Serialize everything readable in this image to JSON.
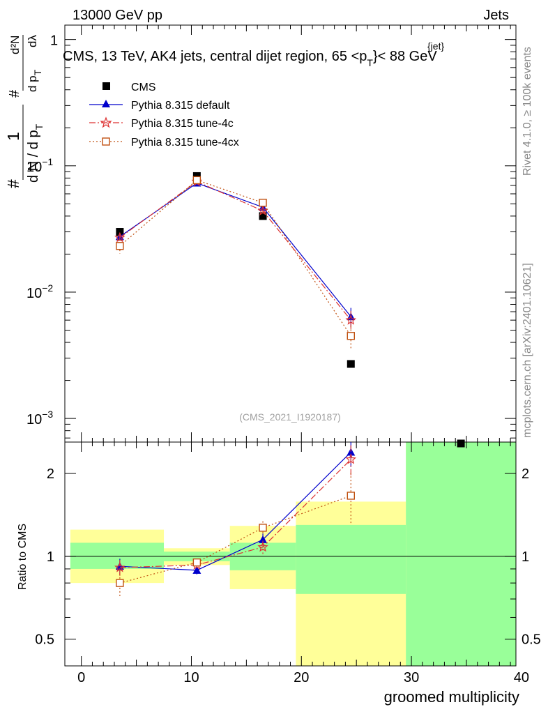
{
  "header": {
    "left": "13000 GeV pp",
    "right": "Jets"
  },
  "side_labels": {
    "rivet": "Rivet 4.1.0, ≥ 100k events",
    "mcplots": "mcplots.cern.ch [arXiv:2401.10621]"
  },
  "chart_data": {
    "type": "scatter",
    "title": "CMS, 13 TeV, AK4 jets, central dijet region, 65 <p",
    "title_sub": "T",
    "title_sup": "{jet}",
    "title_end": "}< 88 GeV",
    "analysis_tag": "(CMS_2021_I1920187)",
    "xlabel": "groomed multiplicity",
    "ylabel_top": {
      "numerator": "1",
      "den_a": "d N / d p",
      "den_a_sub": "T",
      "prefix_hash": "#",
      "ratio_num": "d²N",
      "ratio_den": "d p",
      "ratio_den_sub": "T",
      "ratio_end": "dλ",
      "ratio_hash": "#"
    },
    "ylabel_bottom": "Ratio to CMS",
    "xlim": [
      -1.5,
      39.5
    ],
    "x_ticks": [
      "0",
      "10",
      "20",
      "30",
      "40"
    ],
    "ylim_top": [
      0.00065,
      1.3
    ],
    "ylim_bottom": [
      0.4,
      2.6
    ],
    "y_ticks_top": [
      {
        "value": 1,
        "label": "1",
        "sup": ""
      },
      {
        "value": 0.1,
        "label": "10",
        "sup": "−1"
      },
      {
        "value": 0.01,
        "label": "10",
        "sup": "−2"
      },
      {
        "value": 0.001,
        "label": "10",
        "sup": "−3"
      }
    ],
    "y_ticks_bottom": [
      {
        "value": 0.5,
        "label": "0.5"
      },
      {
        "value": 1,
        "label": "1"
      },
      {
        "value": 2,
        "label": "2"
      }
    ],
    "bins": [
      {
        "lo": -1,
        "hi": 7.5,
        "center": 3.5
      },
      {
        "lo": 7.5,
        "hi": 13.5,
        "center": 10.5
      },
      {
        "lo": 13.5,
        "hi": 19.5,
        "center": 16.5
      },
      {
        "lo": 19.5,
        "hi": 29.5,
        "center": 24.5
      },
      {
        "lo": 29.5,
        "hi": 39.5,
        "center": 34.5
      }
    ],
    "data": {
      "name": "CMS",
      "x": [
        3.5,
        10.5,
        16.5,
        24.5,
        34.5
      ],
      "y": [
        0.03,
        0.083,
        0.04,
        0.0027,
        0.0006
      ],
      "ratio_band_inner": [
        [
          0.9,
          1.12
        ],
        [
          0.96,
          1.04
        ],
        [
          0.89,
          1.12
        ],
        [
          0.73,
          1.3
        ],
        [
          0.0,
          2.6
        ]
      ],
      "ratio_band_outer": [
        [
          0.8,
          1.25
        ],
        [
          0.93,
          1.07
        ],
        [
          0.76,
          1.29
        ],
        [
          0.0,
          1.58
        ],
        [
          0.0,
          2.6
        ]
      ]
    },
    "series": [
      {
        "name": "Pythia 8.315 default",
        "color": "#0000cc",
        "dash": "",
        "marker": "triangle",
        "x": [
          3.5,
          10.5,
          16.5,
          24.5
        ],
        "y": [
          0.0275,
          0.073,
          0.047,
          0.0064
        ],
        "yerr": [
          0.0015,
          0.0015,
          0.002,
          0.0011
        ],
        "ratio": [
          0.92,
          0.89,
          1.15,
          2.39
        ],
        "ratio_err": [
          0.06,
          0.03,
          0.06,
          0.28
        ]
      },
      {
        "name": "Pythia 8.315 tune-4c",
        "color": "#dd3333",
        "dash": "9,3,2,3",
        "marker": "star",
        "x": [
          3.5,
          10.5,
          16.5,
          24.5
        ],
        "y": [
          0.027,
          0.075,
          0.044,
          0.006
        ],
        "yerr": [
          0.0015,
          0.0015,
          0.002,
          0.0011
        ],
        "ratio": [
          0.91,
          0.93,
          1.08,
          2.25
        ],
        "ratio_err": [
          0.06,
          0.03,
          0.06,
          0.28
        ]
      },
      {
        "name": "Pythia 8.315 tune-4cx",
        "color": "#c05010",
        "dash": "2,3",
        "marker": "open-square",
        "x": [
          3.5,
          10.5,
          16.5,
          24.5
        ],
        "y": [
          0.0232,
          0.077,
          0.051,
          0.0045
        ],
        "yerr": [
          0.003,
          0.0015,
          0.003,
          0.0009
        ],
        "ratio": [
          0.8,
          0.95,
          1.27,
          1.66
        ],
        "ratio_err": [
          0.09,
          0.03,
          0.07,
          0.35
        ]
      }
    ],
    "legend_position": "top-left",
    "band_colors": {
      "inner": "#99ff99",
      "outer": "#ffff99"
    }
  }
}
